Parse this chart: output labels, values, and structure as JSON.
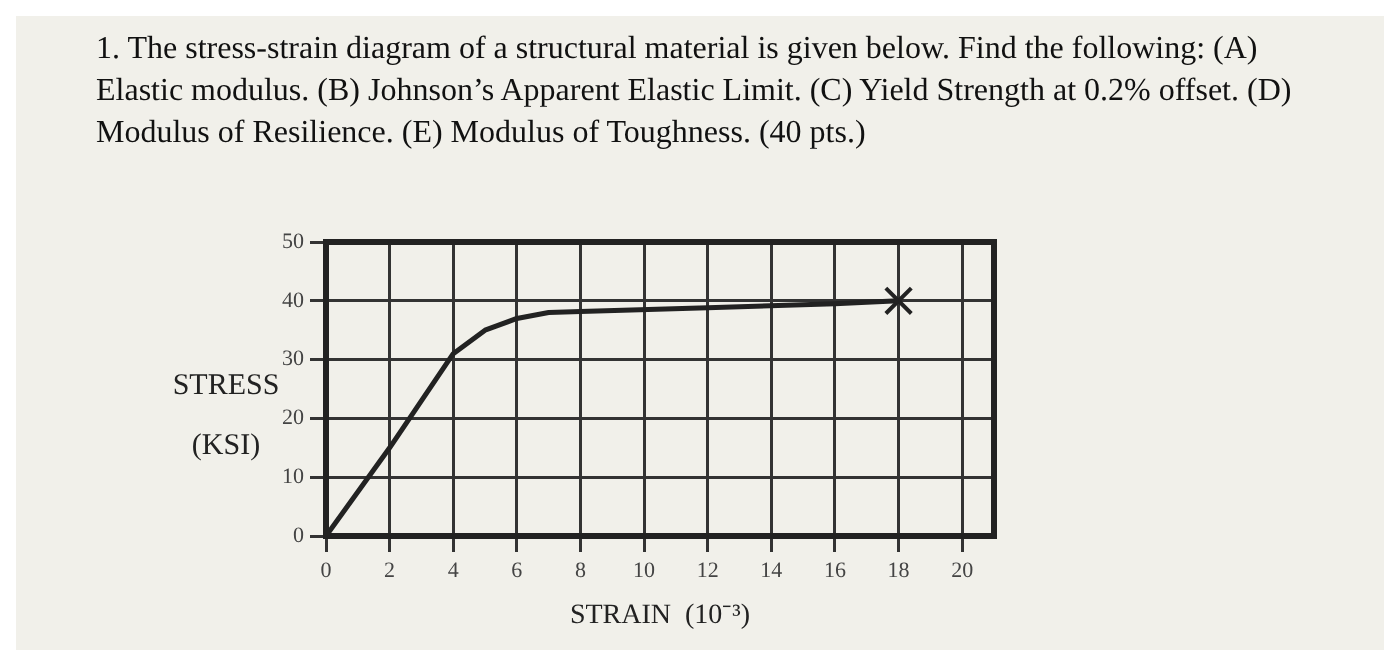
{
  "chart_data": {
    "type": "line",
    "title": "1. The stress-strain diagram of a structural material is given below. Find the following: (A) Elastic modulus. (B) Johnson’s Apparent Elastic Limit. (C) Yield Strength at 0.2% offset. (D) Modulus of Resilience. (E) Modulus of Toughness. (40 pts.)",
    "xlabel": "STRAIN  (10⁻³)",
    "ylabel": "STRESS (KSI)",
    "series": [
      {
        "color": "#222222",
        "marker": "none",
        "x": [
          0,
          2,
          4,
          5,
          6,
          7,
          8,
          12,
          16,
          18
        ],
        "values": [
          0,
          15,
          31,
          35,
          37,
          38,
          38.2,
          38.8,
          39.5,
          40
        ]
      },
      {
        "type": "scatter",
        "color": "#222222",
        "marker": "cross",
        "x": [
          18
        ],
        "values": [
          40
        ]
      }
    ],
    "xlim": [
      0,
      21
    ],
    "xticks": [
      0,
      2,
      4,
      6,
      8,
      10,
      12,
      14,
      16,
      18,
      20
    ],
    "ylim": [
      0,
      50
    ],
    "yticks": [
      0,
      10,
      20,
      30,
      40,
      50
    ],
    "grid": true,
    "legend": false
  }
}
